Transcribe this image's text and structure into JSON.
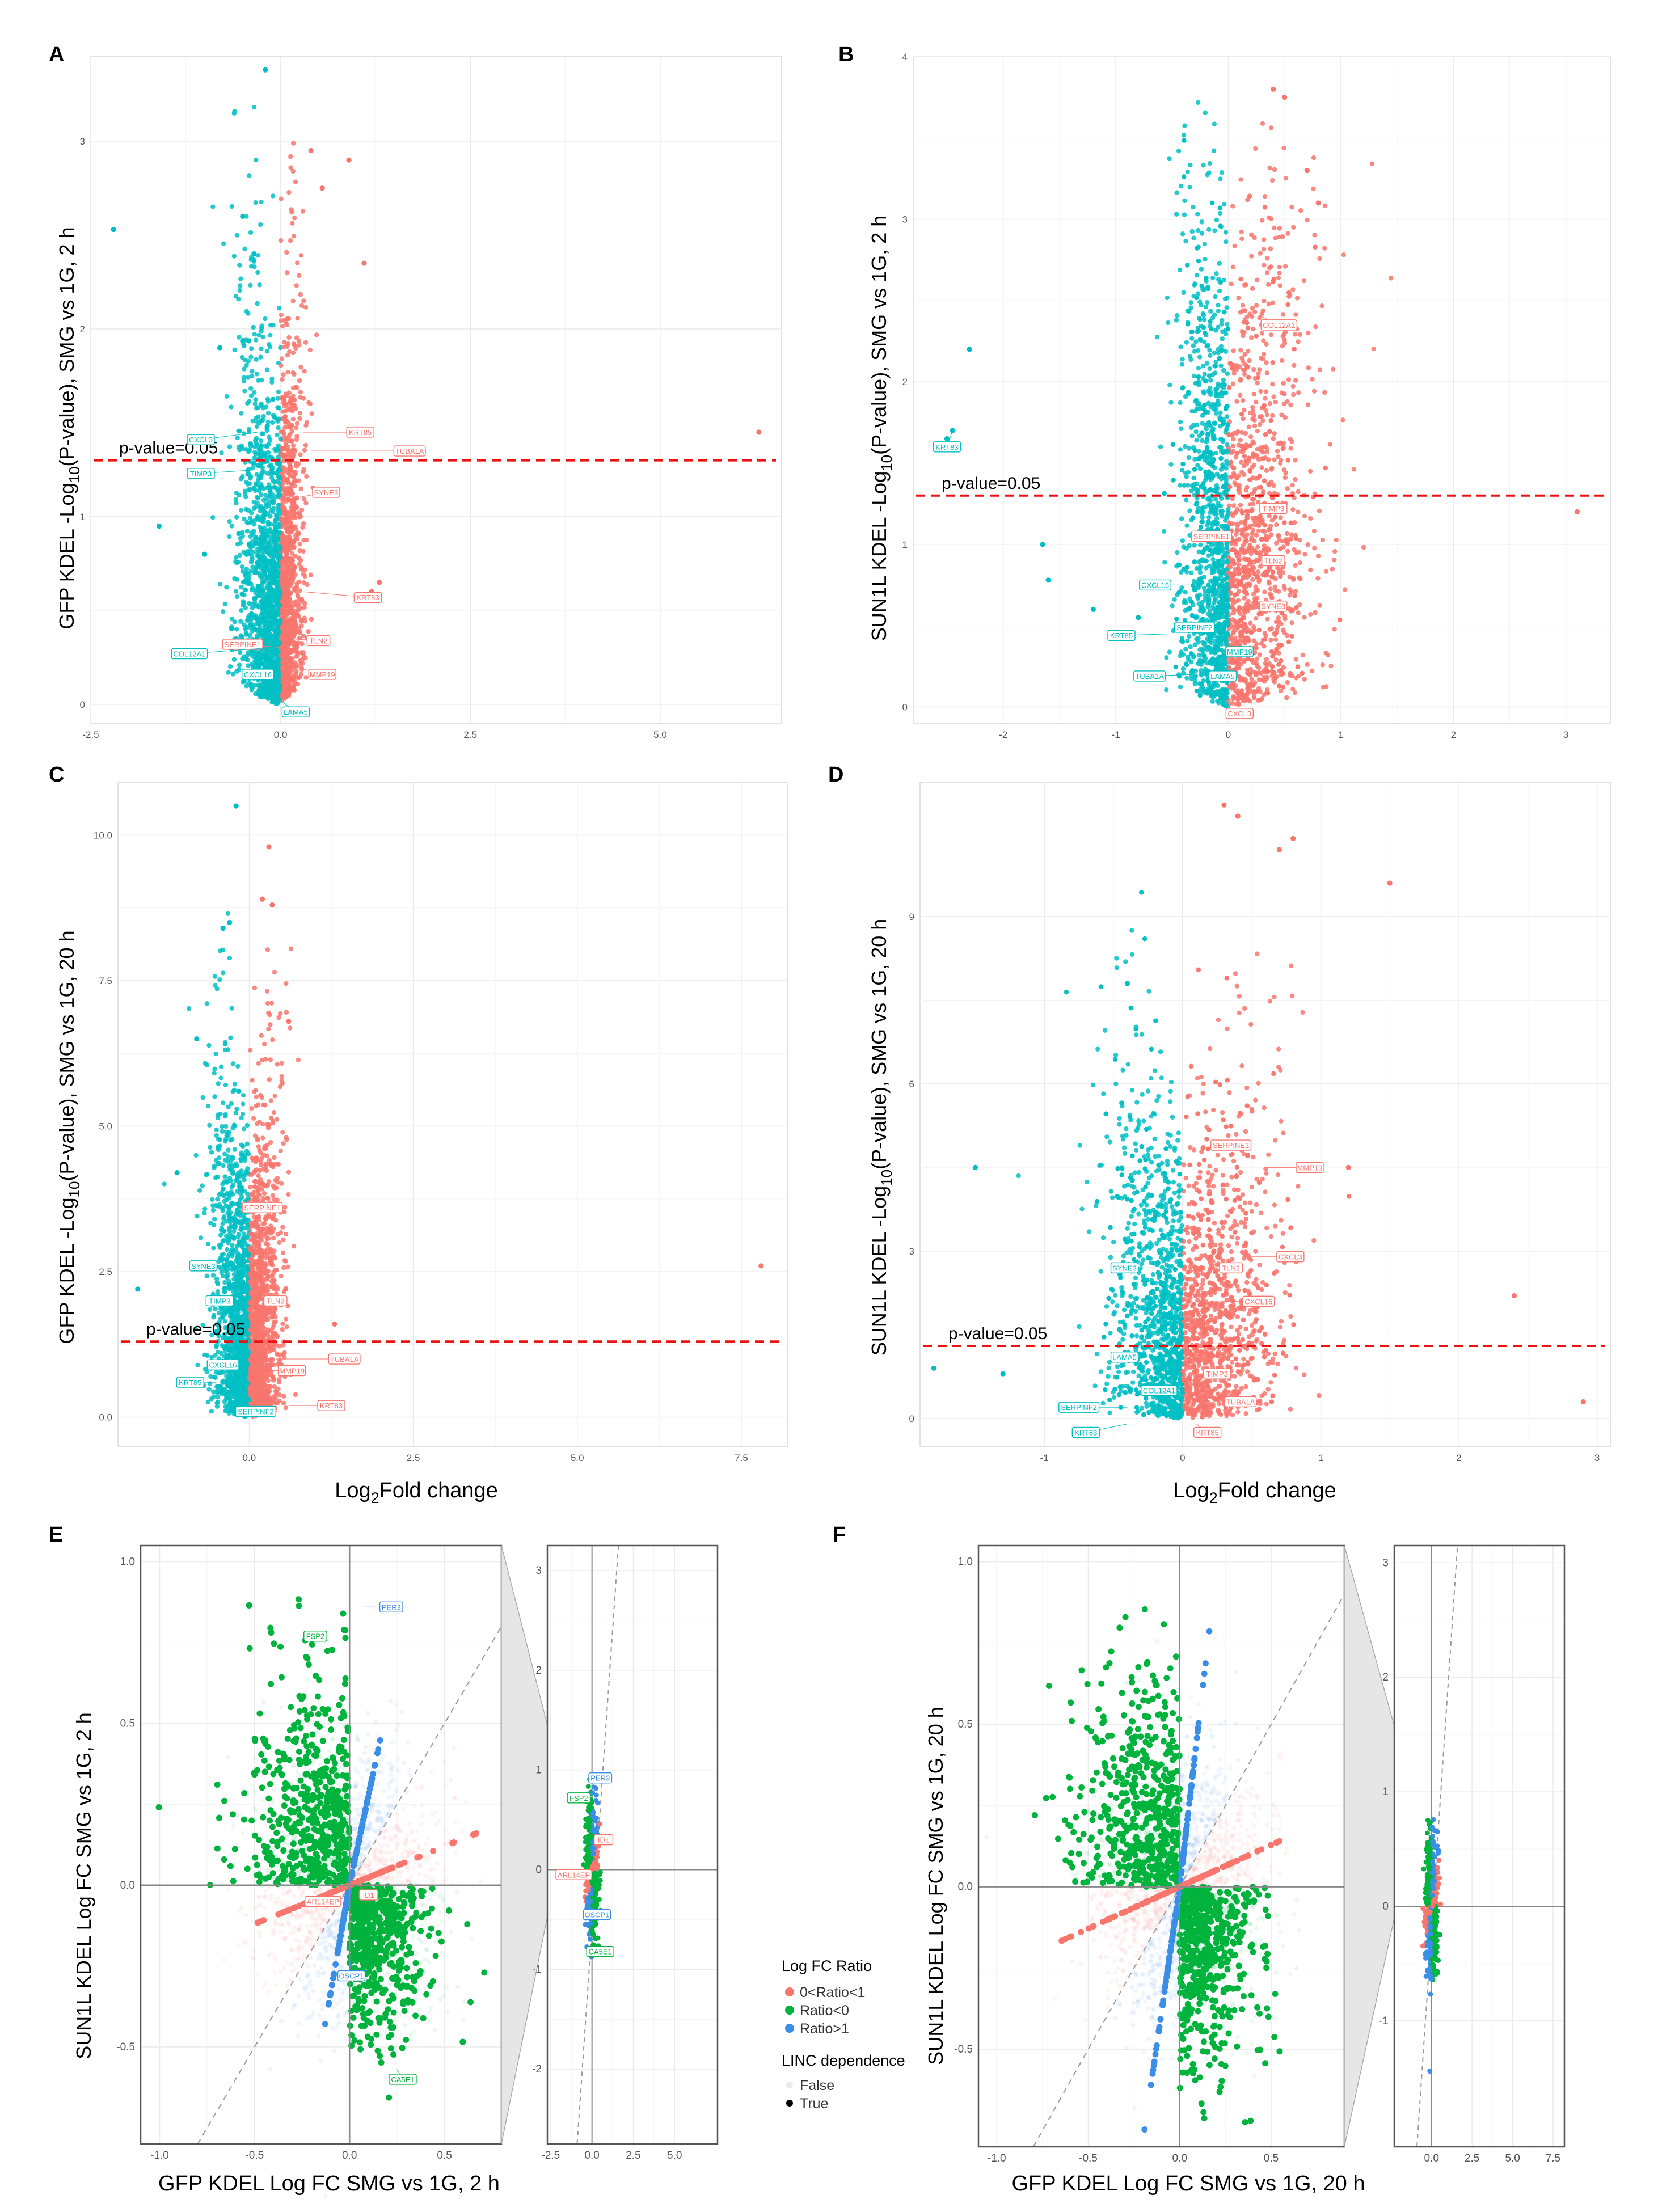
{
  "colors": {
    "up": "#f8766d",
    "down": "#00bfc4",
    "threshold": "#ee1111",
    "ratio_pos_lt1": "#f8766d",
    "ratio_neg": "#00b33c",
    "ratio_gt1": "#3a8ee6",
    "grid": "#ebebeb"
  },
  "chart_data": [
    {
      "panel": "A",
      "type": "scatter",
      "subtype": "volcano",
      "ylabel_main": "GFP KDEL -Log",
      "ylabel_sub": "10",
      "ylabel_tail": "(P-value), SMG vs 1G, 2 h",
      "xlabel": "",
      "xlim": [
        -2.5,
        6.6
      ],
      "ylim": [
        -0.1,
        3.45
      ],
      "xticks": [
        -2.5,
        0.0,
        2.5,
        5.0
      ],
      "xtick_labels": [
        "-2.5",
        "0.0",
        "2.5",
        "5.0"
      ],
      "yticks": [
        0,
        1,
        2,
        3
      ],
      "ytick_labels": [
        "0",
        "1",
        "2",
        "3"
      ],
      "threshold_y": 1.3,
      "threshold_label": "p-value=0.05",
      "cloud": {
        "center": -0.05,
        "neg_spread": 0.55,
        "pos_spread": 0.35,
        "ymax": 2.0
      },
      "outliers": [
        [
          -2.2,
          2.53
        ],
        [
          -0.5,
          2.6
        ],
        [
          -0.35,
          2.4
        ],
        [
          -0.2,
          3.38
        ],
        [
          0.4,
          2.95
        ],
        [
          0.55,
          2.75
        ],
        [
          0.9,
          2.9
        ],
        [
          1.1,
          2.35
        ],
        [
          -1.6,
          0.95
        ],
        [
          -1.0,
          0.8
        ],
        [
          1.2,
          0.6
        ],
        [
          1.3,
          0.65
        ],
        [
          6.3,
          1.45
        ],
        [
          -0.8,
          1.9
        ]
      ],
      "genes": [
        {
          "label": "KRT85",
          "x": 0.3,
          "y": 1.45,
          "lx": 1.05,
          "ly": 1.45,
          "side": "up"
        },
        {
          "label": "TUBA1A",
          "x": 0.4,
          "y": 1.35,
          "lx": 1.7,
          "ly": 1.35,
          "side": "up"
        },
        {
          "label": "CXCL3",
          "x": -0.3,
          "y": 1.45,
          "lx": -1.05,
          "ly": 1.41,
          "side": "down"
        },
        {
          "label": "TIMP3",
          "x": -0.3,
          "y": 1.25,
          "lx": -1.05,
          "ly": 1.23,
          "side": "down"
        },
        {
          "label": "SYNE3",
          "x": 0.2,
          "y": 1.1,
          "lx": 0.6,
          "ly": 1.13,
          "side": "up"
        },
        {
          "label": "KRT83",
          "x": 0.3,
          "y": 0.6,
          "lx": 1.15,
          "ly": 0.57,
          "side": "up"
        },
        {
          "label": "TLN2",
          "x": 0.1,
          "y": 0.35,
          "lx": 0.5,
          "ly": 0.34,
          "side": "up"
        },
        {
          "label": "SERPINE1",
          "x": 0.1,
          "y": 0.3,
          "lx": -0.5,
          "ly": 0.32,
          "side": "up"
        },
        {
          "label": "COL12A1",
          "x": -0.2,
          "y": 0.3,
          "lx": -1.2,
          "ly": 0.27,
          "side": "down"
        },
        {
          "label": "MMP19",
          "x": 0.2,
          "y": 0.2,
          "lx": 0.55,
          "ly": 0.16,
          "side": "up"
        },
        {
          "label": "CXCL16",
          "x": -0.1,
          "y": 0.15,
          "lx": -0.3,
          "ly": 0.16,
          "side": "down"
        },
        {
          "label": "LAMA5",
          "x": 0.0,
          "y": 0.02,
          "lx": 0.2,
          "ly": -0.04,
          "side": "down"
        }
      ]
    },
    {
      "panel": "B",
      "type": "scatter",
      "subtype": "volcano",
      "ylabel_main": "SUN1L KDEL -Log",
      "ylabel_sub": "10",
      "ylabel_tail": "(P-value), SMG vs 1G, 2 h",
      "xlabel": "",
      "xlim": [
        -2.8,
        3.4
      ],
      "ylim": [
        -0.1,
        4.0
      ],
      "xticks": [
        -2,
        -1,
        0,
        1,
        2,
        3
      ],
      "xtick_labels": [
        "-2",
        "-1",
        "0",
        "1",
        "2",
        "3"
      ],
      "yticks": [
        0,
        1,
        2,
        3,
        4
      ],
      "ytick_labels": [
        "0",
        "1",
        "2",
        "3",
        "4"
      ],
      "threshold_y": 1.3,
      "threshold_label": "p-value=0.05",
      "cloud": {
        "center": 0.0,
        "neg_spread": 0.45,
        "pos_spread": 0.75,
        "ymax": 3.2
      },
      "outliers": [
        [
          -2.45,
          1.7
        ],
        [
          -2.5,
          1.65
        ],
        [
          -2.3,
          2.2
        ],
        [
          -1.65,
          1.0
        ],
        [
          -1.6,
          0.78
        ],
        [
          0.4,
          3.8
        ],
        [
          0.5,
          3.75
        ],
        [
          0.7,
          3.3
        ],
        [
          0.8,
          3.1
        ],
        [
          3.1,
          1.2
        ],
        [
          -0.8,
          0.55
        ],
        [
          -1.2,
          0.6
        ]
      ],
      "genes": [
        {
          "label": "KRT83",
          "x": -2.45,
          "y": 1.7,
          "lx": -2.5,
          "ly": 1.6,
          "side": "down"
        },
        {
          "label": "COL12A1",
          "x": 0.3,
          "y": 2.4,
          "lx": 0.45,
          "ly": 2.35,
          "side": "up"
        },
        {
          "label": "TIMP3",
          "x": 0.1,
          "y": 1.2,
          "lx": 0.4,
          "ly": 1.22,
          "side": "up"
        },
        {
          "label": "SERPINE1",
          "x": 0.0,
          "y": 1.05,
          "lx": -0.15,
          "ly": 1.05,
          "side": "up"
        },
        {
          "label": "TLN2",
          "x": 0.2,
          "y": 0.9,
          "lx": 0.4,
          "ly": 0.9,
          "side": "up"
        },
        {
          "label": "CXCL16",
          "x": -0.2,
          "y": 0.75,
          "lx": -0.65,
          "ly": 0.75,
          "side": "down"
        },
        {
          "label": "SYNE3",
          "x": 0.2,
          "y": 0.6,
          "lx": 0.4,
          "ly": 0.62,
          "side": "up"
        },
        {
          "label": "KRT85",
          "x": -0.5,
          "y": 0.45,
          "lx": -0.95,
          "ly": 0.44,
          "side": "down"
        },
        {
          "label": "SERPINF2",
          "x": -0.1,
          "y": 0.5,
          "lx": -0.3,
          "ly": 0.49,
          "side": "down"
        },
        {
          "label": "MMP19",
          "x": 0.0,
          "y": 0.35,
          "lx": 0.1,
          "ly": 0.34,
          "side": "down"
        },
        {
          "label": "TUBA1A",
          "x": -0.3,
          "y": 0.2,
          "lx": -0.7,
          "ly": 0.19,
          "side": "down"
        },
        {
          "label": "LAMA5",
          "x": 0.0,
          "y": 0.2,
          "lx": -0.05,
          "ly": 0.19,
          "side": "down"
        },
        {
          "label": "CXCL3",
          "x": 0.0,
          "y": 0.0,
          "lx": 0.1,
          "ly": -0.04,
          "side": "up"
        }
      ]
    },
    {
      "panel": "C",
      "type": "scatter",
      "subtype": "volcano",
      "ylabel_main": "GFP KDEL -Log",
      "ylabel_sub": "10",
      "ylabel_tail": "(P-value), SMG vs 1G, 20 h",
      "xlabel": "Log",
      "xlabel_sub": "2",
      "xlabel_tail": "Fold change",
      "xlim": [
        -2.0,
        8.2
      ],
      "ylim": [
        -0.5,
        10.9
      ],
      "xticks": [
        0.0,
        2.5,
        5.0,
        7.5
      ],
      "xtick_labels": [
        "0.0",
        "2.5",
        "5.0",
        "7.5"
      ],
      "yticks": [
        0.0,
        2.5,
        5.0,
        7.5,
        10.0
      ],
      "ytick_labels": [
        "0.0",
        "2.5",
        "5.0",
        "7.5",
        "10.0"
      ],
      "threshold_y": 1.3,
      "threshold_label": "p-value=0.05",
      "cloud": {
        "center": 0.0,
        "neg_spread": 0.6,
        "pos_spread": 0.5,
        "ymax": 5.5
      },
      "outliers": [
        [
          -0.2,
          10.5
        ],
        [
          0.3,
          9.8
        ],
        [
          -0.4,
          8.4
        ],
        [
          -0.3,
          8.5
        ],
        [
          0.2,
          8.9
        ],
        [
          0.35,
          8.8
        ],
        [
          7.8,
          2.6
        ],
        [
          -1.7,
          2.2
        ],
        [
          -0.8,
          6.5
        ],
        [
          -1.1,
          4.2
        ],
        [
          0.6,
          6.8
        ],
        [
          1.3,
          1.6
        ]
      ],
      "genes": [
        {
          "label": "SERPINE1",
          "x": 0.2,
          "y": 3.6,
          "lx": 0.2,
          "ly": 3.6,
          "side": "up"
        },
        {
          "label": "SYNE3",
          "x": -0.4,
          "y": 2.6,
          "lx": -0.7,
          "ly": 2.6,
          "side": "down"
        },
        {
          "label": "TIMP3",
          "x": -0.2,
          "y": 2.0,
          "lx": -0.45,
          "ly": 2.0,
          "side": "down"
        },
        {
          "label": "TLN2",
          "x": 0.1,
          "y": 2.0,
          "lx": 0.4,
          "ly": 2.0,
          "side": "up"
        },
        {
          "label": "CXCL16",
          "x": -0.3,
          "y": 0.9,
          "lx": -0.4,
          "ly": 0.9,
          "side": "down"
        },
        {
          "label": "MMP19",
          "x": 0.3,
          "y": 0.8,
          "lx": 0.65,
          "ly": 0.8,
          "side": "up"
        },
        {
          "label": "TUBA1A",
          "x": 0.4,
          "y": 1.0,
          "lx": 1.45,
          "ly": 1.0,
          "side": "up"
        },
        {
          "label": "KRT85",
          "x": -0.5,
          "y": 0.6,
          "lx": -0.9,
          "ly": 0.6,
          "side": "down"
        },
        {
          "label": "SERPINF2",
          "x": -0.1,
          "y": 0.1,
          "lx": 0.1,
          "ly": 0.1,
          "side": "down"
        },
        {
          "label": "KRT83",
          "x": 0.6,
          "y": 0.2,
          "lx": 1.25,
          "ly": 0.2,
          "side": "up"
        }
      ]
    },
    {
      "panel": "D",
      "type": "scatter",
      "subtype": "volcano",
      "ylabel_main": "SUN1L KDEL -Log",
      "ylabel_sub": "10",
      "ylabel_tail": "(P-value), SMG vs 1G, 20 h",
      "xlabel": "Log",
      "xlabel_sub": "2",
      "xlabel_tail": "Fold change",
      "xlim": [
        -1.9,
        3.1
      ],
      "ylim": [
        -0.5,
        11.4
      ],
      "xticks": [
        -1,
        0,
        1,
        2,
        3
      ],
      "xtick_labels": [
        "-1",
        "0",
        "1",
        "2",
        "3"
      ],
      "yticks": [
        0,
        3,
        6,
        9
      ],
      "ytick_labels": [
        "0",
        "3",
        "6",
        "9"
      ],
      "threshold_y": 1.3,
      "threshold_label": "p-value=0.05",
      "cloud": {
        "center": 0.0,
        "neg_spread": 0.55,
        "pos_spread": 0.7,
        "ymax": 6.0
      },
      "outliers": [
        [
          0.3,
          11.0
        ],
        [
          0.4,
          10.8
        ],
        [
          0.7,
          10.2
        ],
        [
          0.8,
          10.4
        ],
        [
          1.5,
          9.6
        ],
        [
          2.9,
          0.3
        ],
        [
          -1.5,
          4.5
        ],
        [
          -1.8,
          0.9
        ],
        [
          -1.3,
          0.8
        ],
        [
          2.4,
          2.2
        ],
        [
          -0.4,
          7.8
        ],
        [
          1.2,
          4.5
        ]
      ],
      "genes": [
        {
          "label": "SERPINE1",
          "x": 0.2,
          "y": 4.9,
          "lx": 0.35,
          "ly": 4.9,
          "side": "up"
        },
        {
          "label": "MMP19",
          "x": 0.6,
          "y": 4.5,
          "lx": 0.92,
          "ly": 4.5,
          "side": "up"
        },
        {
          "label": "SYNE3",
          "x": -0.2,
          "y": 2.7,
          "lx": -0.42,
          "ly": 2.7,
          "side": "down"
        },
        {
          "label": "TLN2",
          "x": 0.2,
          "y": 2.7,
          "lx": 0.35,
          "ly": 2.7,
          "side": "up"
        },
        {
          "label": "CXCL3",
          "x": 0.5,
          "y": 2.9,
          "lx": 0.78,
          "ly": 2.9,
          "side": "up"
        },
        {
          "label": "CXCL16",
          "x": 0.3,
          "y": 2.1,
          "lx": 0.55,
          "ly": 2.1,
          "side": "up"
        },
        {
          "label": "LAMA5",
          "x": -0.3,
          "y": 1.1,
          "lx": -0.42,
          "ly": 1.1,
          "side": "down"
        },
        {
          "label": "TIMP3",
          "x": 0.1,
          "y": 0.8,
          "lx": 0.25,
          "ly": 0.8,
          "side": "up"
        },
        {
          "label": "COL12A1",
          "x": -0.1,
          "y": 0.5,
          "lx": -0.17,
          "ly": 0.5,
          "side": "down"
        },
        {
          "label": "SERPINF2",
          "x": -0.4,
          "y": 0.2,
          "lx": -0.75,
          "ly": 0.2,
          "side": "down"
        },
        {
          "label": "TUBA1A",
          "x": 0.2,
          "y": 0.3,
          "lx": 0.42,
          "ly": 0.3,
          "side": "up"
        },
        {
          "label": "KRT83",
          "x": -0.4,
          "y": -0.1,
          "lx": -0.7,
          "ly": -0.25,
          "side": "down"
        },
        {
          "label": "KRT85",
          "x": 0.1,
          "y": -0.1,
          "lx": 0.18,
          "ly": -0.25,
          "side": "up"
        }
      ]
    },
    {
      "panel": "E",
      "type": "scatter",
      "subtype": "fold-change-comparison",
      "ylabel": "SUN1L KDEL Log FC SMG vs 1G, 2 h",
      "xlabel": "GFP KDEL Log FC SMG vs 1G, 2 h",
      "xlim": [
        -1.1,
        0.8
      ],
      "ylim": [
        -0.8,
        1.05
      ],
      "xticks": [
        -1.0,
        -0.5,
        0.0,
        0.5
      ],
      "xtick_labels": [
        "-1.0",
        "-0.5",
        "0.0",
        "0.5"
      ],
      "yticks": [
        -0.5,
        0.0,
        0.5,
        1.0
      ],
      "ytick_labels": [
        "-0.5",
        "0.0",
        "0.5",
        "1.0"
      ],
      "spread": {
        "green_q2": [
          -0.35,
          0.35
        ],
        "green_q4": [
          0.25,
          -0.25
        ],
        "blue_q1": [
          0.15,
          0.25
        ],
        "blue_q3": [
          -0.1,
          -0.2
        ],
        "red_q1": [
          0.3,
          0.12
        ],
        "red_q3": [
          -0.3,
          -0.12
        ]
      },
      "genes": [
        {
          "label": "PER3",
          "x": 0.07,
          "y": 0.86,
          "lx": 0.22,
          "ly": 0.86,
          "kind": "ratio_gt1"
        },
        {
          "label": "FSP2",
          "x": -0.2,
          "y": 0.75,
          "lx": -0.18,
          "ly": 0.77,
          "kind": "ratio_neg"
        },
        {
          "label": "ID1",
          "x": 0.05,
          "y": 0.0,
          "lx": 0.1,
          "ly": -0.03,
          "kind": "ratio_pos_lt1"
        },
        {
          "label": "ARL14EP",
          "x": -0.03,
          "y": -0.04,
          "lx": -0.14,
          "ly": -0.05,
          "kind": "ratio_pos_lt1"
        },
        {
          "label": "OSCP1",
          "x": 0.0,
          "y": -0.22,
          "lx": 0.01,
          "ly": -0.28,
          "kind": "ratio_gt1"
        },
        {
          "label": "CA5E1",
          "x": 0.25,
          "y": -0.57,
          "lx": 0.28,
          "ly": -0.6,
          "kind": "ratio_neg"
        }
      ],
      "inset": {
        "xlim": [
          -2.7,
          7.6
        ],
        "ylim": [
          -2.75,
          3.25
        ],
        "xticks": [
          -2.5,
          0.0,
          2.5,
          5.0
        ],
        "xtick_labels": [
          "-2.5",
          "0.0",
          "2.5",
          "5.0"
        ],
        "yticks": [
          -2,
          -1,
          0,
          1,
          2,
          3
        ],
        "ytick_labels": [
          "-2",
          "-1",
          "0",
          "1",
          "2",
          "3"
        ],
        "genes": [
          {
            "label": "PER3",
            "x": 0.0,
            "y": 0.9,
            "lx": 0.5,
            "ly": 0.92,
            "kind": "ratio_gt1"
          },
          {
            "label": "FSP2",
            "x": -0.4,
            "y": 0.7,
            "lx": -0.8,
            "ly": 0.72,
            "kind": "ratio_neg"
          },
          {
            "label": "ID1",
            "x": 0.1,
            "y": 0.3,
            "lx": 0.7,
            "ly": 0.3,
            "kind": "ratio_pos_lt1"
          },
          {
            "label": "ARL14EP",
            "x": -0.2,
            "y": -0.05,
            "lx": -1.1,
            "ly": -0.05,
            "kind": "ratio_pos_lt1"
          },
          {
            "label": "OSCP1",
            "x": 0.1,
            "y": -0.45,
            "lx": 0.3,
            "ly": -0.45,
            "kind": "ratio_gt1"
          },
          {
            "label": "CA5E1",
            "x": 0.3,
            "y": -0.75,
            "lx": 0.5,
            "ly": -0.82,
            "kind": "ratio_neg"
          }
        ]
      }
    },
    {
      "panel": "F",
      "type": "scatter",
      "subtype": "fold-change-comparison",
      "ylabel": "SUN1L KDEL Log FC SMG vs 1G, 20 h",
      "xlabel": "GFP KDEL Log FC SMG vs 1G, 20 h",
      "xlim": [
        -1.1,
        0.9
      ],
      "ylim": [
        -0.8,
        1.05
      ],
      "xticks": [
        -1.0,
        -0.5,
        0.0,
        0.5
      ],
      "xtick_labels": [
        "-1.0",
        "-0.5",
        "0.0",
        "0.5"
      ],
      "yticks": [
        -0.5,
        0.0,
        0.5,
        1.0
      ],
      "ytick_labels": [
        "-0.5",
        "0.0",
        "0.5",
        "1.0"
      ],
      "spread": {
        "green_q2": [
          -0.35,
          0.35
        ],
        "green_q4": [
          0.25,
          -0.3
        ],
        "blue_q1": [
          0.12,
          0.35
        ],
        "blue_q3": [
          -0.15,
          -0.35
        ],
        "red_q1": [
          0.35,
          0.15
        ],
        "red_q3": [
          -0.35,
          -0.15
        ]
      },
      "genes": [],
      "inset": {
        "xlim": [
          -2.3,
          8.2
        ],
        "ylim": [
          -2.1,
          3.15
        ],
        "xticks": [
          0.0,
          2.5,
          5.0,
          7.5
        ],
        "xtick_labels": [
          "0.0",
          "2.5",
          "5.0",
          "7.5"
        ],
        "yticks": [
          -1,
          0,
          1,
          2,
          3
        ],
        "ytick_labels": [
          "-1",
          "0",
          "1",
          "2",
          "3"
        ],
        "genes": []
      }
    }
  ],
  "legend": {
    "title": "Log FC Ratio",
    "items": [
      "0<Ratio<1",
      "Ratio<0",
      "Ratio>1"
    ],
    "item_colors": [
      "#f8766d",
      "#00b33c",
      "#3a8ee6"
    ],
    "title2": "LINC dependence",
    "items2": [
      "False",
      "True"
    ]
  }
}
